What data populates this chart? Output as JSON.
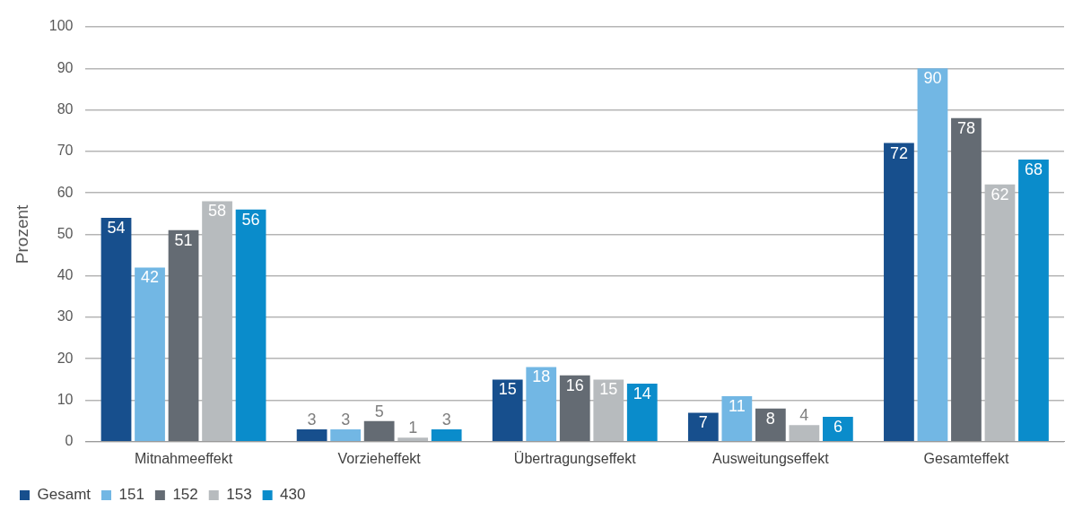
{
  "chart_data": {
    "type": "bar",
    "ylabel": "Prozent",
    "categories": [
      "Mitnahmeeffekt",
      "Vorzieheffekt",
      "Übertragungseffekt",
      "Ausweitungseffekt",
      "Gesamteffekt"
    ],
    "series": [
      {
        "name": "Gesamt",
        "color": "#174f8d",
        "values": [
          54,
          3,
          15,
          7,
          72
        ]
      },
      {
        "name": "151",
        "color": "#72b7e4",
        "values": [
          42,
          3,
          18,
          11,
          90
        ]
      },
      {
        "name": "152",
        "color": "#646b73",
        "values": [
          51,
          5,
          16,
          8,
          78
        ]
      },
      {
        "name": "153",
        "color": "#b7bbbe",
        "values": [
          58,
          1,
          15,
          4,
          62
        ]
      },
      {
        "name": "430",
        "color": "#0a8ccb",
        "values": [
          56,
          3,
          14,
          6,
          68
        ]
      }
    ],
    "ylim": [
      0,
      100
    ],
    "yticks": [
      0,
      10,
      20,
      30,
      40,
      50,
      60,
      70,
      80,
      90,
      100
    ],
    "grid": "y",
    "legend": "bottom left",
    "data_labels": true
  }
}
